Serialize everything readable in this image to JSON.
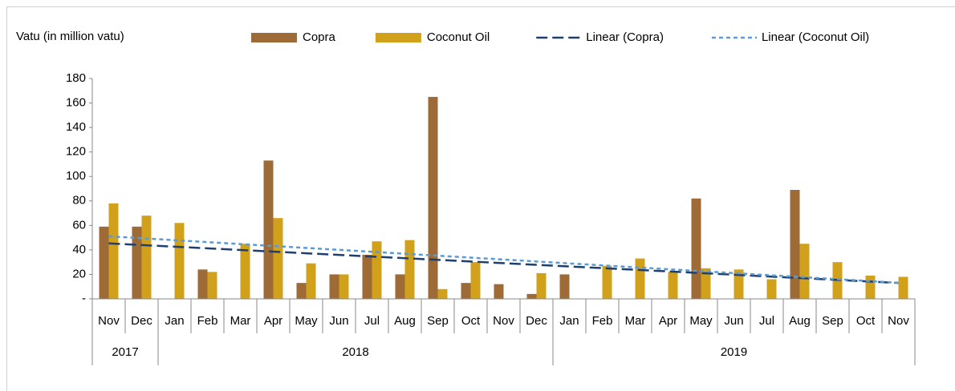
{
  "chart_data": {
    "type": "bar",
    "y_label": "Vatu (in million vatu)",
    "categories": [
      "Nov",
      "Dec",
      "Jan",
      "Feb",
      "Mar",
      "Apr",
      "May",
      "Jun",
      "Jul",
      "Aug",
      "Sep",
      "Oct",
      "Nov",
      "Dec",
      "Jan",
      "Feb",
      "Mar",
      "Apr",
      "May",
      "Jun",
      "Jul",
      "Aug",
      "Sep",
      "Oct",
      "Nov"
    ],
    "groups": [
      {
        "label": "2017",
        "size": 2
      },
      {
        "label": "2018",
        "size": 12
      },
      {
        "label": "2019",
        "size": 11
      }
    ],
    "series": [
      {
        "name": "Copra",
        "color": "#9e6a35",
        "values": [
          59,
          59,
          0,
          24,
          0,
          113,
          13,
          20,
          36,
          20,
          165,
          13,
          12,
          4,
          20,
          0,
          0,
          0,
          82,
          0,
          0,
          89,
          0,
          0,
          0
        ]
      },
      {
        "name": "Coconut Oil",
        "color": "#d1a11c",
        "values": [
          78,
          68,
          62,
          22,
          45,
          66,
          29,
          20,
          47,
          48,
          8,
          30,
          0,
          21,
          0,
          27,
          33,
          22,
          25,
          24,
          16,
          45,
          30,
          19,
          18
        ]
      }
    ],
    "trendlines": [
      {
        "name": "Linear (Copra)",
        "series": 0,
        "color": "#1f3f6e",
        "dash": "14 6"
      },
      {
        "name": "Linear (Coconut Oil)",
        "series": 1,
        "color": "#5b9bd5",
        "dash": "5 4"
      }
    ],
    "ylim": [
      0,
      180
    ],
    "yticks": [
      {
        "value": 0,
        "label": "-"
      },
      20,
      40,
      60,
      80,
      100,
      120,
      140,
      160,
      180
    ]
  }
}
